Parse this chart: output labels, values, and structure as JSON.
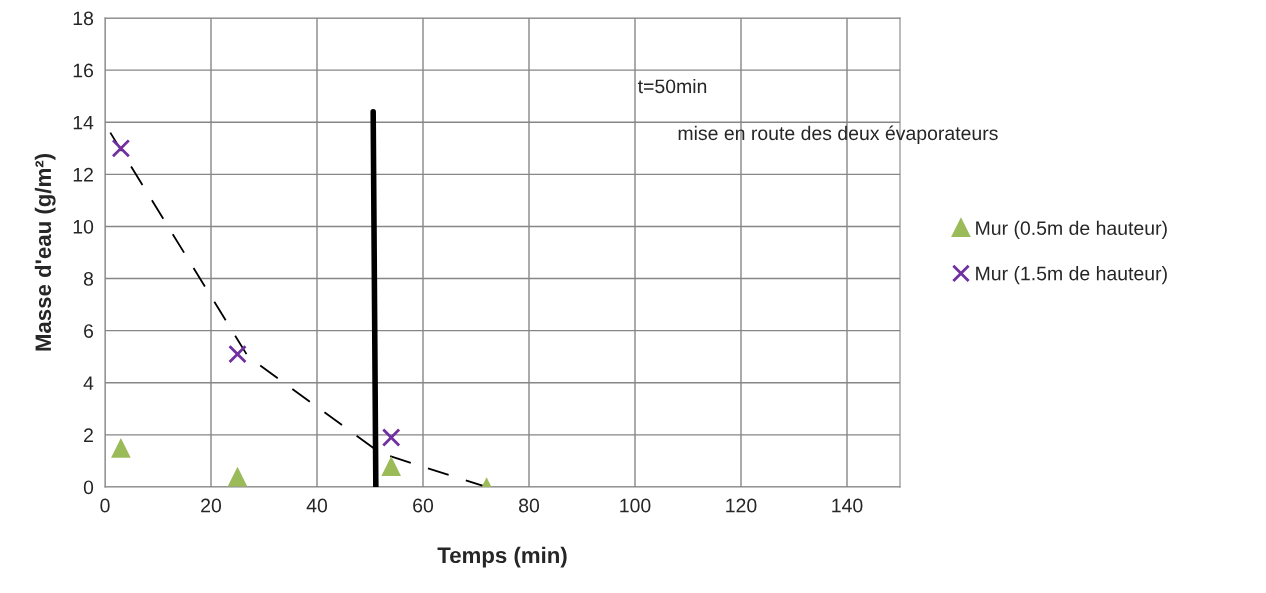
{
  "chart_data": {
    "type": "scatter",
    "xlabel": "Temps (min)",
    "ylabel": "Masse d'eau (g/m²)",
    "xlim": [
      0,
      150
    ],
    "xticks": [
      0,
      20,
      40,
      60,
      80,
      100,
      120,
      140
    ],
    "ylim": [
      0,
      18
    ],
    "yticks": [
      0,
      2,
      4,
      6,
      8,
      10,
      12,
      14,
      16,
      18
    ],
    "grid": true,
    "legend": "right",
    "series": [
      {
        "name": "Mur (0.5m de hauteur)",
        "marker": "triangle",
        "color": "#9bbb59",
        "x": [
          3,
          25,
          54,
          72
        ],
        "values": [
          1.5,
          0.4,
          0.8,
          0.0
        ]
      },
      {
        "name": "Mur (1.5m de hauteur)",
        "marker": "cross",
        "color": "#7030a0",
        "x": [
          3,
          25,
          54
        ],
        "values": [
          13.0,
          5.1,
          1.9
        ]
      },
      {
        "type": "line",
        "line_style": "dashed",
        "color": "#000000",
        "x": [
          1,
          27,
          52,
          72
        ],
        "values": [
          13.6,
          5.0,
          1.3,
          0.0
        ]
      },
      {
        "type": "line",
        "line_style": "solid",
        "color": "#000000",
        "x": [
          50.6,
          51.1
        ],
        "values": [
          14.4,
          0.0
        ]
      }
    ],
    "annotations": [
      "t=50min",
      "mise en route des deux évaporateurs"
    ]
  }
}
